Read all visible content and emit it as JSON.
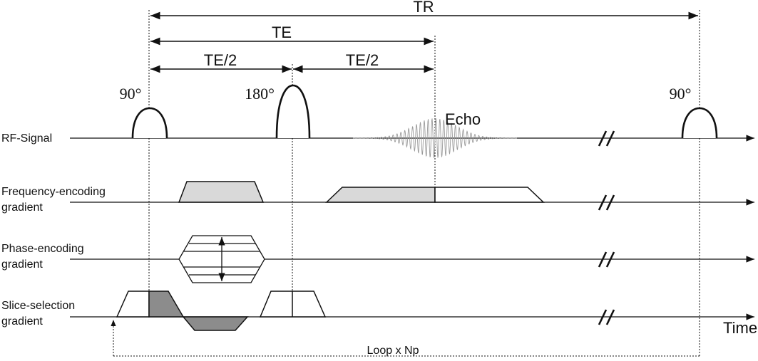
{
  "timing": {
    "tr": "TR",
    "te": "TE",
    "te_half_1": "TE/2",
    "te_half_2": "TE/2"
  },
  "rf": {
    "pulse_90_start": "90°",
    "pulse_180": "180°",
    "pulse_90_end": "90°",
    "echo": "Echo"
  },
  "rows": {
    "rf_signal": "RF-Signal",
    "frequency_line1": "Frequency-encoding",
    "frequency_line2": "gradient",
    "phase_line1": "Phase-encoding",
    "phase_line2": "gradient",
    "slice_line1": "Slice-selection",
    "slice_line2": "gradient"
  },
  "axis": {
    "time": "Time",
    "break_mark": "//"
  },
  "loop": {
    "label": "Loop x Np"
  },
  "colors": {
    "ink": "#111111",
    "readout_fill": "#d9d9d9",
    "slice_rephase_fill": "#8c8c8c"
  },
  "icons": {
    "axis_break": "double-slash-icon",
    "arrow": "arrowhead-icon"
  }
}
